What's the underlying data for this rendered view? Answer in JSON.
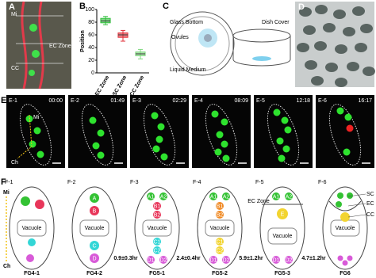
{
  "panels": {
    "a": {
      "letter": "A",
      "labels": [
        "Mi",
        "EC Zone",
        "CC"
      ]
    },
    "b": {
      "letter": "B"
    },
    "c": {
      "letter": "C",
      "labels": [
        "Glass Bottom",
        "Ovules",
        "Liquid Medium",
        "Dish Cover"
      ]
    },
    "d": {
      "letter": "D"
    },
    "e": {
      "letter": "E",
      "mi": "Mi",
      "ch": "Ch",
      "frames": [
        {
          "label": "E-1",
          "time": "00:00"
        },
        {
          "label": "E-2",
          "time": "01:49"
        },
        {
          "label": "E-3",
          "time": "02:29"
        },
        {
          "label": "E-4",
          "time": "08:09"
        },
        {
          "label": "E-5",
          "time": "12:18"
        },
        {
          "label": "E-6",
          "time": "16:17"
        }
      ]
    },
    "f": {
      "letter": "F",
      "mi": "Mi",
      "ch": "Ch",
      "ec_zone": "EC Zone",
      "cell_labels": [
        "SC",
        "EC",
        "CC"
      ],
      "intervals": [
        "0.9±0.3hr",
        "2.4±0.4hr",
        "5.9±1.2hr",
        "4.7±1.2hr"
      ],
      "stages": [
        {
          "label": "F-1",
          "stage": "FG4-1",
          "vacuole": "Vacuole",
          "nuclei": [
            {
              "color": "#33c233"
            },
            {
              "color": "#e8365a"
            },
            {
              "color": "#33d6d6"
            },
            {
              "color": "#d85ad8"
            }
          ]
        },
        {
          "label": "F-2",
          "stage": "FG4-2",
          "vacuole": "Vacuole",
          "nuclei": [
            {
              "label": "A",
              "color": "#33c233"
            },
            {
              "label": "B",
              "color": "#e8365a"
            },
            {
              "label": "C",
              "color": "#33d6d6"
            },
            {
              "label": "D",
              "color": "#d85ad8"
            }
          ]
        },
        {
          "label": "F-3",
          "stage": "FG5-1",
          "vacuole": "Vacuole",
          "nuclei": [
            {
              "label": "A1",
              "color": "#33c233"
            },
            {
              "label": "A2",
              "color": "#33c233"
            },
            {
              "label": "B1",
              "color": "#e8365a"
            },
            {
              "label": "B2",
              "color": "#e8365a"
            },
            {
              "label": "C1",
              "color": "#33d6d6"
            },
            {
              "label": "C2",
              "color": "#33d6d6"
            },
            {
              "label": "D1",
              "color": "#d85ad8"
            },
            {
              "label": "D2",
              "color": "#d85ad8"
            }
          ]
        },
        {
          "label": "F-4",
          "stage": "FG5-2",
          "vacuole": "Vacuole",
          "nuclei": [
            {
              "label": "A1",
              "color": "#33c233"
            },
            {
              "label": "A2",
              "color": "#33c233"
            },
            {
              "label": "B1",
              "color": "#f08a24"
            },
            {
              "label": "B2",
              "color": "#f08a24"
            },
            {
              "label": "C1",
              "color": "#f2d430"
            },
            {
              "label": "C2",
              "color": "#f2d430"
            },
            {
              "label": "D1",
              "color": "#d85ad8"
            },
            {
              "label": "D2",
              "color": "#d85ad8"
            }
          ]
        },
        {
          "label": "F-5",
          "stage": "FG5-3",
          "vacuole": "Vacuole",
          "nuclei": [
            {
              "label": "A1",
              "color": "#33c233"
            },
            {
              "label": "A2",
              "color": "#33c233"
            },
            {
              "label": "E",
              "color": "#f2d430"
            },
            {
              "label": "D1",
              "color": "#d85ad8"
            },
            {
              "label": "D2",
              "color": "#d85ad8"
            }
          ]
        },
        {
          "label": "F-6",
          "stage": "FG6",
          "vacuole": "Vacuole",
          "nuclei": [
            {
              "color": "#33c233"
            },
            {
              "color": "#33c233"
            },
            {
              "color": "#33c233"
            },
            {
              "color": "#f2d430"
            },
            {
              "color": "#d85ad8"
            },
            {
              "color": "#d85ad8"
            },
            {
              "color": "#d85ad8"
            }
          ]
        }
      ]
    }
  },
  "chart_data": {
    "type": "box",
    "ylabel": "Position",
    "categories": [
      "EC Zone",
      "SC Zone",
      "CC Zone"
    ],
    "boxes": [
      {
        "min": 76,
        "q1": 79,
        "median": 82,
        "q3": 86,
        "max": 89,
        "color": "#2fbf3a"
      },
      {
        "min": 50,
        "q1": 56,
        "median": 60,
        "q3": 63,
        "max": 67,
        "color": "#e0303a"
      },
      {
        "min": 22,
        "q1": 27,
        "median": 30,
        "q3": 33,
        "max": 37,
        "color": "#7fd87f"
      }
    ],
    "ylim": [
      0,
      100
    ],
    "yticks": [
      0,
      20,
      40,
      60,
      80,
      100
    ]
  }
}
